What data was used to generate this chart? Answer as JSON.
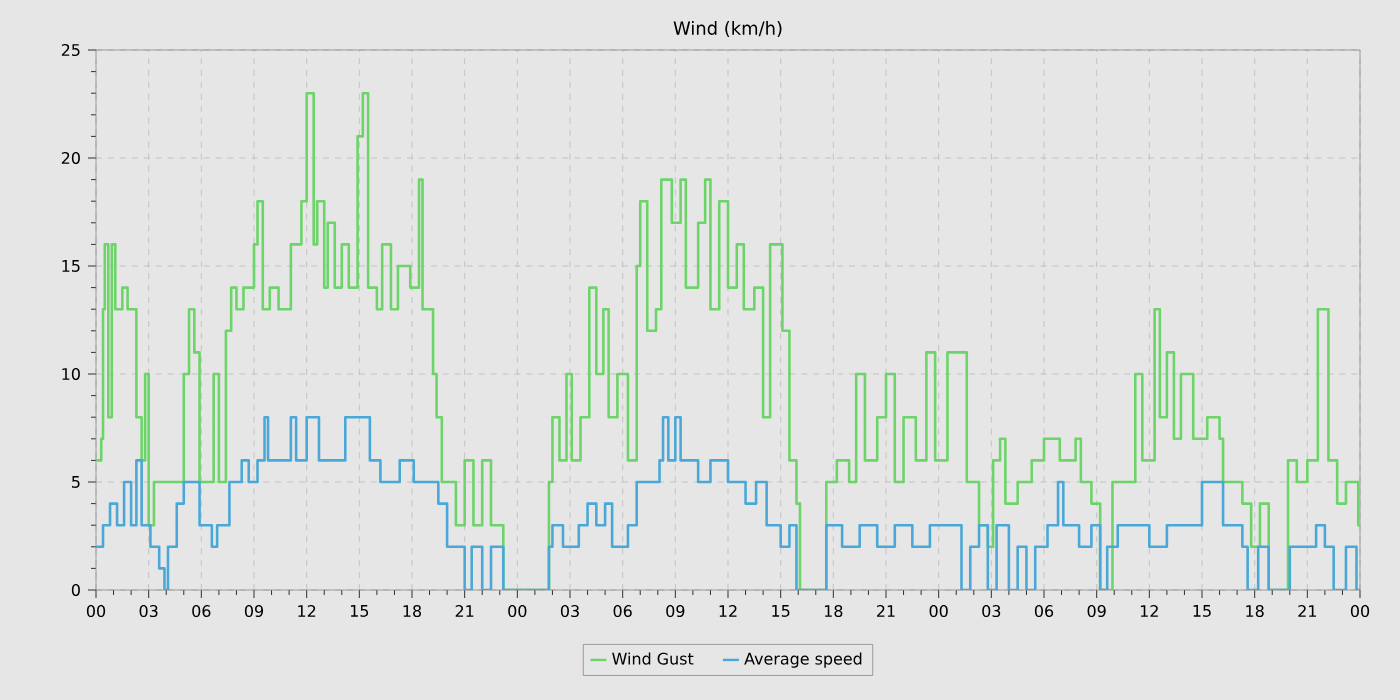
{
  "chart_data": {
    "type": "step",
    "title": "Wind (km/h)",
    "xlim": [
      0,
      72
    ],
    "xticks": [
      {
        "value": 0,
        "label": "00"
      },
      {
        "value": 3,
        "label": "03"
      },
      {
        "value": 6,
        "label": "06"
      },
      {
        "value": 9,
        "label": "09"
      },
      {
        "value": 12,
        "label": "12"
      },
      {
        "value": 15,
        "label": "15"
      },
      {
        "value": 18,
        "label": "18"
      },
      {
        "value": 21,
        "label": "21"
      },
      {
        "value": 24,
        "label": "00"
      },
      {
        "value": 27,
        "label": "03"
      },
      {
        "value": 30,
        "label": "06"
      },
      {
        "value": 33,
        "label": "09"
      },
      {
        "value": 36,
        "label": "12"
      },
      {
        "value": 39,
        "label": "15"
      },
      {
        "value": 42,
        "label": "18"
      },
      {
        "value": 45,
        "label": "21"
      },
      {
        "value": 48,
        "label": "00"
      },
      {
        "value": 51,
        "label": "03"
      },
      {
        "value": 54,
        "label": "06"
      },
      {
        "value": 57,
        "label": "09"
      },
      {
        "value": 60,
        "label": "12"
      },
      {
        "value": 63,
        "label": "15"
      },
      {
        "value": 66,
        "label": "18"
      },
      {
        "value": 69,
        "label": "21"
      },
      {
        "value": 72,
        "label": "00"
      }
    ],
    "ylim": [
      0,
      25
    ],
    "yticks": [
      0,
      5,
      10,
      15,
      20,
      25
    ],
    "grid": true,
    "legend": "bottom",
    "line_style": "solid",
    "marker": "none",
    "series": [
      {
        "name": "Wind Gust",
        "color": "#6dd46a",
        "x": [
          0,
          0.3,
          0.4,
          0.5,
          0.7,
          0.9,
          1.1,
          1.5,
          1.8,
          2.3,
          2.6,
          2.8,
          3.0,
          3.3,
          5.0,
          5.3,
          5.6,
          5.9,
          6.7,
          7.0,
          7.4,
          7.7,
          8.0,
          8.4,
          9.0,
          9.2,
          9.5,
          9.9,
          10.4,
          11.1,
          11.7,
          12.0,
          12.4,
          12.6,
          13.0,
          13.2,
          13.6,
          14.0,
          14.4,
          14.9,
          15.2,
          15.5,
          16.0,
          16.3,
          16.8,
          17.2,
          17.9,
          18.4,
          18.6,
          19.2,
          19.4,
          19.7,
          20.5,
          21.0,
          21.5,
          22.0,
          22.5,
          23.2,
          25.8,
          26.0,
          26.4,
          26.8,
          27.1,
          27.6,
          28.1,
          28.5,
          28.9,
          29.2,
          29.7,
          30.3,
          30.8,
          31.0,
          31.4,
          31.9,
          32.2,
          32.8,
          33.3,
          33.6,
          34.3,
          34.7,
          35.0,
          35.5,
          36.0,
          36.5,
          36.9,
          37.5,
          38.0,
          38.4,
          39.1,
          39.5,
          39.9,
          40.1,
          41.6,
          42.2,
          42.9,
          43.3,
          43.8,
          44.5,
          45.0,
          45.5,
          46.0,
          46.7,
          47.3,
          47.8,
          48.5,
          49.6,
          50.3,
          50.8,
          51.1,
          51.5,
          51.8,
          52.5,
          53.3,
          54.0,
          54.9,
          55.8,
          56.1,
          56.7,
          57.2,
          57.9,
          59.2,
          59.6,
          60.3,
          60.6,
          61.0,
          61.4,
          61.8,
          62.5,
          63.3,
          64.0,
          64.2,
          65.3,
          65.8,
          66.3,
          66.8,
          67.9,
          68.4,
          69.0,
          69.6,
          70.2,
          70.7,
          71.2,
          71.9,
          72
        ],
        "values": [
          6,
          7,
          13,
          16,
          8,
          16,
          13,
          14,
          13,
          8,
          6,
          10,
          3,
          5,
          10,
          13,
          11,
          5,
          10,
          5,
          12,
          14,
          13,
          14,
          16,
          18,
          13,
          14,
          13,
          16,
          18,
          23,
          16,
          18,
          14,
          17,
          14,
          16,
          14,
          21,
          23,
          14,
          13,
          16,
          13,
          15,
          14,
          19,
          13,
          10,
          8,
          5,
          3,
          6,
          3,
          6,
          3,
          0,
          5,
          8,
          6,
          10,
          6,
          8,
          14,
          10,
          13,
          8,
          10,
          6,
          15,
          18,
          12,
          13,
          19,
          17,
          19,
          14,
          17,
          19,
          13,
          18,
          14,
          16,
          13,
          14,
          8,
          16,
          12,
          6,
          4,
          0,
          5,
          6,
          5,
          10,
          6,
          8,
          10,
          5,
          8,
          6,
          11,
          6,
          11,
          5,
          3,
          2,
          6,
          7,
          4,
          5,
          6,
          7,
          6,
          7,
          5,
          4,
          0,
          5,
          10,
          6,
          13,
          8,
          11,
          7,
          10,
          7,
          8,
          7,
          5,
          4,
          2,
          4,
          0,
          6,
          5,
          6,
          13,
          6,
          4,
          5,
          3,
          3
        ]
      },
      {
        "name": "Average speed",
        "color": "#4aa8d8",
        "x": [
          0,
          0.4,
          0.8,
          1.2,
          1.6,
          2.0,
          2.3,
          2.6,
          3.1,
          3.6,
          3.9,
          4.1,
          4.6,
          5.0,
          5.9,
          6.6,
          6.9,
          7.6,
          8.3,
          8.7,
          9.2,
          9.6,
          9.8,
          11.1,
          11.4,
          12.0,
          12.7,
          14.2,
          15.6,
          16.2,
          17.3,
          18.1,
          19.5,
          20.0,
          21.0,
          21.4,
          22.0,
          22.5,
          23.2,
          25.8,
          26.0,
          26.6,
          27.5,
          28.0,
          28.5,
          29.0,
          29.4,
          30.3,
          30.8,
          32.1,
          32.3,
          32.6,
          33.0,
          33.3,
          34.3,
          35.0,
          36.0,
          37.0,
          37.6,
          38.2,
          39.0,
          39.5,
          39.9,
          41.6,
          42.5,
          43.5,
          44.5,
          45.5,
          46.5,
          47.5,
          49.3,
          49.8,
          50.3,
          50.8,
          51.3,
          52.0,
          52.5,
          53.0,
          53.5,
          54.2,
          54.8,
          55.1,
          56.0,
          56.7,
          57.2,
          57.6,
          58.2,
          60.0,
          61.0,
          63.0,
          64.2,
          65.3,
          65.6,
          66.2,
          66.8,
          68.0,
          69.5,
          70.0,
          70.5,
          71.2,
          71.8,
          72
        ],
        "values": [
          2,
          3,
          4,
          3,
          5,
          3,
          6,
          3,
          2,
          1,
          0,
          2,
          4,
          5,
          3,
          2,
          3,
          5,
          6,
          5,
          6,
          8,
          6,
          8,
          6,
          8,
          6,
          8,
          6,
          5,
          6,
          5,
          4,
          2,
          0,
          2,
          0,
          2,
          0,
          2,
          3,
          2,
          3,
          4,
          3,
          4,
          2,
          3,
          5,
          6,
          8,
          6,
          8,
          6,
          5,
          6,
          5,
          4,
          5,
          3,
          2,
          3,
          0,
          3,
          2,
          3,
          2,
          3,
          2,
          3,
          0,
          2,
          3,
          0,
          3,
          0,
          2,
          0,
          2,
          3,
          5,
          3,
          2,
          3,
          0,
          2,
          3,
          2,
          3,
          5,
          3,
          2,
          0,
          2,
          0,
          2,
          3,
          2,
          0,
          2,
          0,
          0
        ]
      }
    ]
  }
}
